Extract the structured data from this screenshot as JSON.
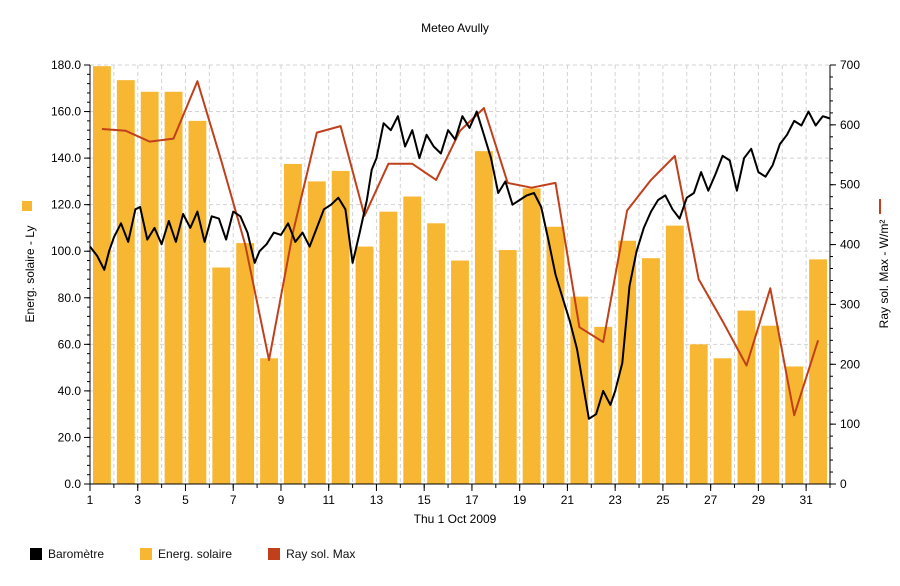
{
  "chart_data": {
    "type": "bar+line",
    "title": "Meteo  Avully",
    "xlabel": "Thu 1 Oct 2009",
    "ylabel_left": "Energ. solaire - Ly",
    "ylabel_right": "Ray sol. Max - W/m²",
    "x_ticks": [
      "1",
      "3",
      "5",
      "7",
      "9",
      "11",
      "13",
      "15",
      "17",
      "19",
      "21",
      "23",
      "25",
      "27",
      "29",
      "31"
    ],
    "y_left_ticks": [
      "0.0",
      "20.0",
      "40.0",
      "60.0",
      "80.0",
      "100.0",
      "120.0",
      "140.0",
      "160.0",
      "180.0"
    ],
    "y_right_ticks": [
      "0",
      "100",
      "200",
      "300",
      "400",
      "500",
      "600",
      "700"
    ],
    "xlim": [
      1,
      32
    ],
    "ylim_left": [
      0,
      180
    ],
    "ylim_right": [
      0,
      700
    ],
    "grid": true,
    "colors": {
      "energy": "#f7b733",
      "ray": "#c0401c",
      "barometer": "#000000",
      "grid": "#d3d3d3"
    },
    "series": [
      {
        "name": "Energ. solaire",
        "axis": "left",
        "kind": "bar",
        "days": [
          1,
          2,
          3,
          4,
          5,
          6,
          7,
          8,
          9,
          10,
          11,
          12,
          13,
          14,
          15,
          16,
          17,
          18,
          19,
          20,
          21,
          22,
          23,
          24,
          25,
          26,
          27,
          28,
          29,
          30,
          31
        ],
        "values": [
          179.5,
          173.5,
          168.5,
          168.5,
          156,
          93,
          103.5,
          54,
          137.5,
          130,
          134.5,
          102,
          117,
          123.5,
          112,
          96,
          143,
          100.5,
          127,
          110.5,
          80.5,
          67.5,
          104.5,
          97,
          111,
          60,
          54,
          74.5,
          68,
          50.5,
          96.5
        ]
      },
      {
        "name": "Ray sol. Max",
        "axis": "right",
        "kind": "line",
        "x": [
          1.5,
          2.5,
          3.5,
          4.5,
          5.5,
          6.5,
          7.5,
          8.5,
          9.5,
          10.5,
          11.5,
          12.5,
          13.5,
          14.5,
          15.5,
          16.5,
          17.5,
          18.5,
          19.5,
          20.5,
          21.5,
          22.5,
          23.5,
          24.5,
          25.5,
          26.5,
          27.5,
          28.5,
          29.5,
          30.5,
          31.5
        ],
        "values": [
          593,
          590,
          572,
          577,
          673,
          540,
          400,
          207,
          420,
          587,
          598,
          448,
          535,
          535,
          508,
          590,
          628,
          503,
          495,
          503,
          262,
          237,
          457,
          508,
          548,
          342,
          272,
          198,
          327,
          115,
          240
        ]
      },
      {
        "name": "Baromètre",
        "axis": "left",
        "kind": "line",
        "x": [
          1,
          1.3,
          1.6,
          1.8,
          2,
          2.3,
          2.6,
          2.9,
          3.1,
          3.4,
          3.7,
          4,
          4.3,
          4.6,
          4.9,
          5.2,
          5.5,
          5.8,
          6.1,
          6.4,
          6.7,
          7,
          7.3,
          7.6,
          7.9,
          8.1,
          8.4,
          8.7,
          9,
          9.3,
          9.6,
          9.9,
          10.2,
          10.5,
          10.8,
          11.1,
          11.4,
          11.7,
          12,
          12.3,
          12.6,
          12.8,
          13,
          13.3,
          13.6,
          13.9,
          14.2,
          14.5,
          14.8,
          15.1,
          15.4,
          15.7,
          16,
          16.3,
          16.6,
          16.9,
          17.2,
          17.5,
          17.8,
          18.1,
          18.4,
          18.7,
          19,
          19.3,
          19.6,
          19.9,
          20.2,
          20.5,
          20.8,
          21.1,
          21.4,
          21.7,
          21.9,
          22.2,
          22.5,
          22.8,
          23,
          23.3,
          23.6,
          23.9,
          24.2,
          24.5,
          24.8,
          25.1,
          25.4,
          25.7,
          26,
          26.3,
          26.6,
          26.9,
          27.2,
          27.5,
          27.8,
          28.1,
          28.4,
          28.7,
          29,
          29.3,
          29.6,
          29.9,
          30.2,
          30.5,
          30.8,
          31.1,
          31.4,
          31.7,
          32
        ],
        "values": [
          102,
          98,
          92,
          100,
          106,
          112,
          104,
          118,
          119,
          105,
          110,
          103,
          113,
          104,
          116,
          110,
          117,
          104,
          115,
          114,
          105,
          117,
          115,
          108,
          95,
          100,
          103,
          108,
          107,
          112,
          104,
          108,
          102,
          110,
          118,
          120,
          123,
          118,
          95,
          108,
          122,
          135,
          140,
          155,
          152,
          158,
          145,
          152,
          140,
          150,
          145,
          142,
          152,
          148,
          158,
          153,
          160,
          150,
          140,
          125,
          130,
          120,
          122,
          124,
          125,
          119,
          105,
          90,
          80,
          70,
          58,
          40,
          28,
          30,
          40,
          34,
          40,
          52,
          85,
          100,
          110,
          117,
          122,
          124,
          118,
          114,
          123,
          125,
          134,
          126,
          133,
          141,
          139,
          126,
          140,
          144,
          134,
          132,
          137,
          146,
          150,
          156,
          154,
          160,
          154,
          158,
          157
        ]
      }
    ],
    "legend": {
      "placement": "bottom-left",
      "entries": [
        {
          "label": "Baromètre",
          "color": "#000000",
          "kind": "line"
        },
        {
          "label": "Energ. solaire",
          "color": "#f7b733",
          "kind": "bar"
        },
        {
          "label": "Ray sol. Max",
          "color": "#c0401c",
          "kind": "line"
        }
      ]
    }
  }
}
